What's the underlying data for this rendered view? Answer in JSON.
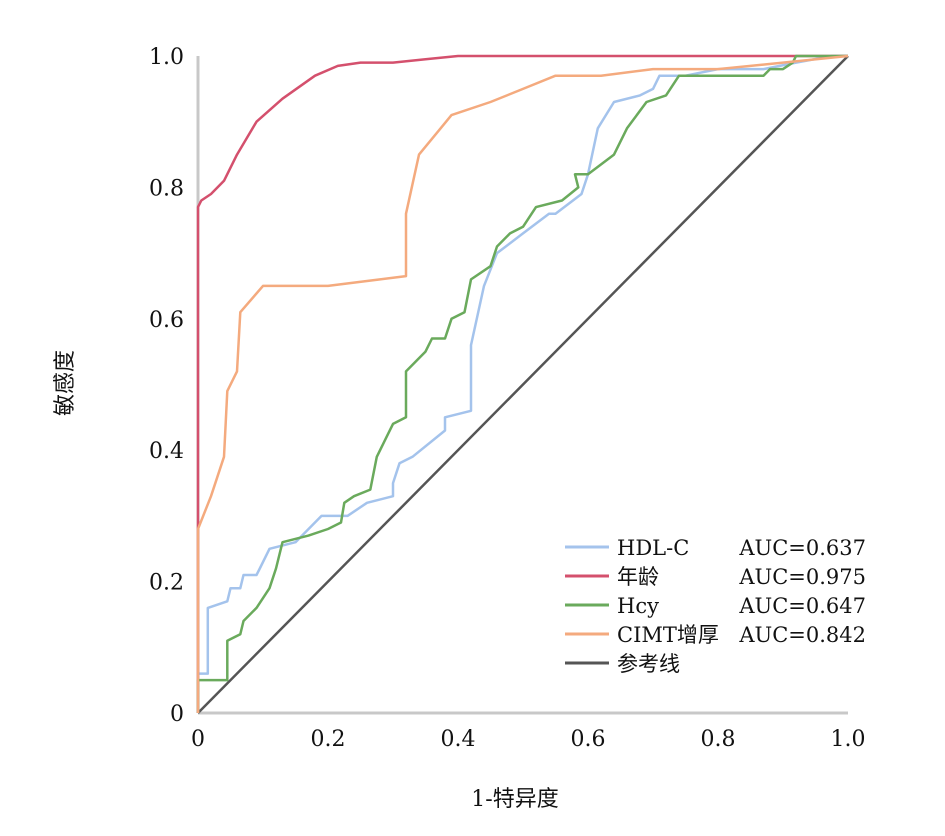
{
  "chart_data": {
    "type": "line",
    "xlabel": "1-特异度",
    "ylabel": "敏感度",
    "xlim": [
      0,
      1
    ],
    "ylim": [
      0,
      1
    ],
    "x_ticks": [
      "0",
      "0.2",
      "0.4",
      "0.6",
      "0.8",
      "1.0"
    ],
    "y_ticks": [
      "0",
      "0.2",
      "0.4",
      "0.6",
      "0.8",
      "1.0"
    ],
    "grid": false,
    "legend_position": "bottom-right",
    "series": [
      {
        "name": "HDL-C",
        "auc_label": "AUC=0.637",
        "color": "#a4c3ec",
        "points": [
          [
            0,
            0
          ],
          [
            0,
            0.06
          ],
          [
            0.015,
            0.06
          ],
          [
            0.015,
            0.16
          ],
          [
            0.045,
            0.17
          ],
          [
            0.05,
            0.19
          ],
          [
            0.065,
            0.19
          ],
          [
            0.07,
            0.21
          ],
          [
            0.09,
            0.21
          ],
          [
            0.095,
            0.22
          ],
          [
            0.11,
            0.25
          ],
          [
            0.15,
            0.26
          ],
          [
            0.19,
            0.3
          ],
          [
            0.23,
            0.3
          ],
          [
            0.26,
            0.32
          ],
          [
            0.3,
            0.33
          ],
          [
            0.3,
            0.35
          ],
          [
            0.31,
            0.38
          ],
          [
            0.33,
            0.39
          ],
          [
            0.38,
            0.43
          ],
          [
            0.38,
            0.45
          ],
          [
            0.42,
            0.46
          ],
          [
            0.42,
            0.56
          ],
          [
            0.44,
            0.65
          ],
          [
            0.46,
            0.7
          ],
          [
            0.5,
            0.73
          ],
          [
            0.54,
            0.76
          ],
          [
            0.55,
            0.76
          ],
          [
            0.59,
            0.79
          ],
          [
            0.6,
            0.82
          ],
          [
            0.615,
            0.89
          ],
          [
            0.64,
            0.93
          ],
          [
            0.68,
            0.94
          ],
          [
            0.7,
            0.95
          ],
          [
            0.71,
            0.97
          ],
          [
            0.75,
            0.97
          ],
          [
            0.8,
            0.98
          ],
          [
            0.87,
            0.98
          ],
          [
            0.92,
            0.99
          ],
          [
            0.975,
            1.0
          ],
          [
            1.0,
            1.0
          ]
        ]
      },
      {
        "name": "年龄",
        "auc_label": "AUC=0.975",
        "color": "#d4506d",
        "points": [
          [
            0,
            0
          ],
          [
            0,
            0.77
          ],
          [
            0.005,
            0.78
          ],
          [
            0.02,
            0.79
          ],
          [
            0.04,
            0.81
          ],
          [
            0.06,
            0.85
          ],
          [
            0.09,
            0.9
          ],
          [
            0.13,
            0.935
          ],
          [
            0.18,
            0.97
          ],
          [
            0.215,
            0.985
          ],
          [
            0.25,
            0.99
          ],
          [
            0.3,
            0.99
          ],
          [
            0.35,
            0.995
          ],
          [
            0.4,
            1.0
          ],
          [
            1.0,
            1.0
          ]
        ]
      },
      {
        "name": "Hcy",
        "auc_label": "AUC=0.647",
        "color": "#6aaa5c",
        "points": [
          [
            0,
            0
          ],
          [
            0,
            0.05
          ],
          [
            0.045,
            0.05
          ],
          [
            0.045,
            0.11
          ],
          [
            0.065,
            0.12
          ],
          [
            0.07,
            0.14
          ],
          [
            0.09,
            0.16
          ],
          [
            0.11,
            0.19
          ],
          [
            0.12,
            0.22
          ],
          [
            0.13,
            0.26
          ],
          [
            0.17,
            0.27
          ],
          [
            0.2,
            0.28
          ],
          [
            0.22,
            0.29
          ],
          [
            0.225,
            0.32
          ],
          [
            0.24,
            0.33
          ],
          [
            0.265,
            0.34
          ],
          [
            0.275,
            0.39
          ],
          [
            0.29,
            0.42
          ],
          [
            0.3,
            0.44
          ],
          [
            0.32,
            0.45
          ],
          [
            0.32,
            0.52
          ],
          [
            0.35,
            0.55
          ],
          [
            0.36,
            0.57
          ],
          [
            0.38,
            0.57
          ],
          [
            0.39,
            0.6
          ],
          [
            0.41,
            0.61
          ],
          [
            0.42,
            0.66
          ],
          [
            0.45,
            0.68
          ],
          [
            0.46,
            0.71
          ],
          [
            0.48,
            0.73
          ],
          [
            0.5,
            0.74
          ],
          [
            0.52,
            0.77
          ],
          [
            0.56,
            0.78
          ],
          [
            0.585,
            0.8
          ],
          [
            0.58,
            0.82
          ],
          [
            0.6,
            0.82
          ],
          [
            0.64,
            0.85
          ],
          [
            0.66,
            0.89
          ],
          [
            0.69,
            0.93
          ],
          [
            0.72,
            0.94
          ],
          [
            0.74,
            0.97
          ],
          [
            0.76,
            0.97
          ],
          [
            0.87,
            0.97
          ],
          [
            0.88,
            0.98
          ],
          [
            0.9,
            0.98
          ],
          [
            0.915,
            0.99
          ],
          [
            0.92,
            1.0
          ],
          [
            1.0,
            1.0
          ]
        ]
      },
      {
        "name": "CIMT增厚",
        "auc_label": "AUC=0.842",
        "color": "#f4aa7e",
        "points": [
          [
            0,
            0
          ],
          [
            0,
            0.28
          ],
          [
            0.02,
            0.33
          ],
          [
            0.04,
            0.39
          ],
          [
            0.045,
            0.49
          ],
          [
            0.06,
            0.52
          ],
          [
            0.065,
            0.61
          ],
          [
            0.1,
            0.65
          ],
          [
            0.2,
            0.65
          ],
          [
            0.28,
            0.66
          ],
          [
            0.32,
            0.665
          ],
          [
            0.32,
            0.76
          ],
          [
            0.34,
            0.85
          ],
          [
            0.39,
            0.91
          ],
          [
            0.45,
            0.93
          ],
          [
            0.5,
            0.95
          ],
          [
            0.55,
            0.97
          ],
          [
            0.62,
            0.97
          ],
          [
            0.7,
            0.98
          ],
          [
            0.8,
            0.98
          ],
          [
            0.9,
            0.99
          ],
          [
            1.0,
            1.0
          ]
        ]
      },
      {
        "name": "参考线",
        "auc_label": "",
        "color": "#555555",
        "points": [
          [
            0,
            0
          ],
          [
            1,
            1
          ]
        ]
      }
    ]
  }
}
